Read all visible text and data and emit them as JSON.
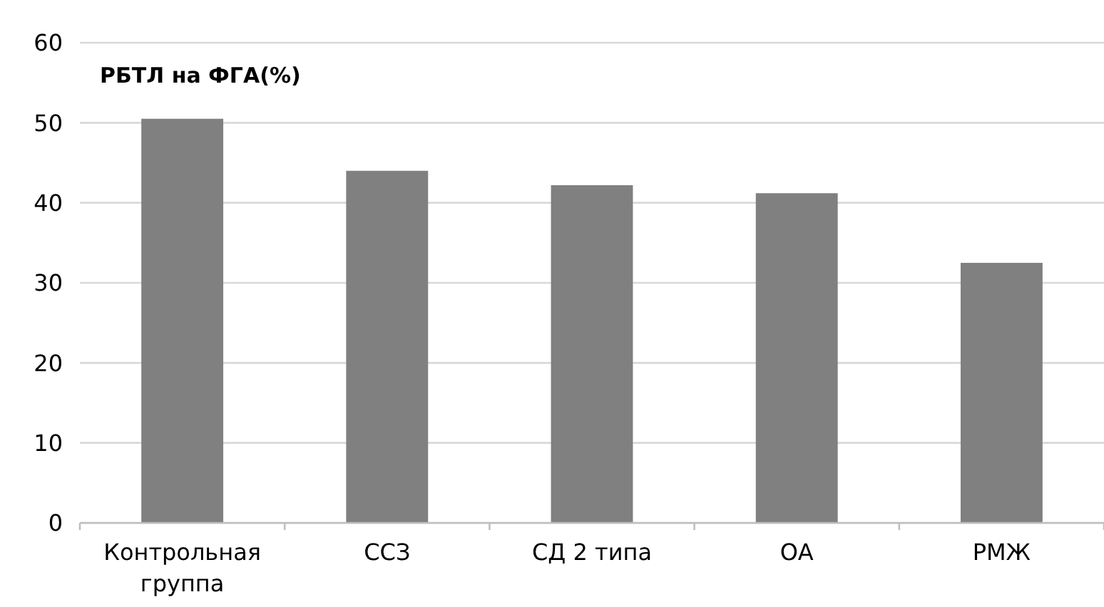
{
  "chart_data": {
    "type": "bar",
    "title": "РБТЛ на ФГА(%)",
    "categories": [
      "Контрольная группа",
      "ССЗ",
      "СД 2 типа",
      "ОА",
      "РМЖ"
    ],
    "values": [
      50.5,
      44.0,
      42.2,
      41.2,
      32.5
    ],
    "color": "#808080",
    "ylim": [
      0,
      60
    ],
    "yticks": [
      0,
      10,
      20,
      30,
      40,
      50,
      60
    ],
    "grid": "y"
  }
}
